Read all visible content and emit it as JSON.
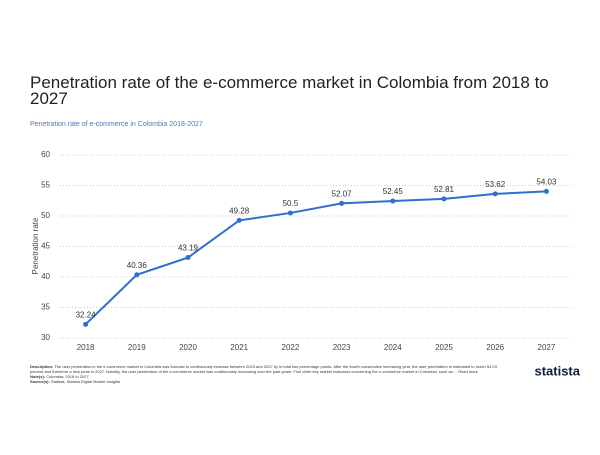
{
  "chart_data": {
    "type": "line",
    "title": "Penetration rate of the e-commerce market in Colombia from 2018 to 2027",
    "subtitle": "Penetration rate of e-commerce in Colombia 2018-2027",
    "y_label": "Penetration rate",
    "categories": [
      "2018",
      "2019",
      "2020",
      "2021",
      "2022",
      "2023",
      "2024",
      "2025",
      "2026",
      "2027"
    ],
    "values": [
      32.24,
      40.36,
      43.19,
      49.28,
      50.5,
      52.07,
      52.45,
      52.81,
      53.62,
      54.03
    ],
    "color": "#2f6fd0",
    "ylim": [
      30,
      60
    ],
    "yticks": [
      30,
      35,
      40,
      45,
      50,
      55,
      60
    ],
    "grid": true
  },
  "footer": {
    "description_label": "Description:",
    "description": "The user penetration in the e-commerce market in Colombia was forecast to continuously increase between 2023 and 2027 by in total two percentage points. After the fourth consecutive increasing year, the user penetration is estimated to reach 54.03 percent and therefore a new peak in 2027. Notably, the user penetration of the e-commerce market was continuously increasing over the past years. Find other key market indicators concerning the e-commerce market in Colombia, such as ... Read more",
    "notes_label": "Note(s):",
    "notes": "Colombia; 2018 to 2027",
    "sources_label": "Source(s):",
    "sources": "Statista; Statista Digital Market Insights",
    "logo": "statista"
  }
}
